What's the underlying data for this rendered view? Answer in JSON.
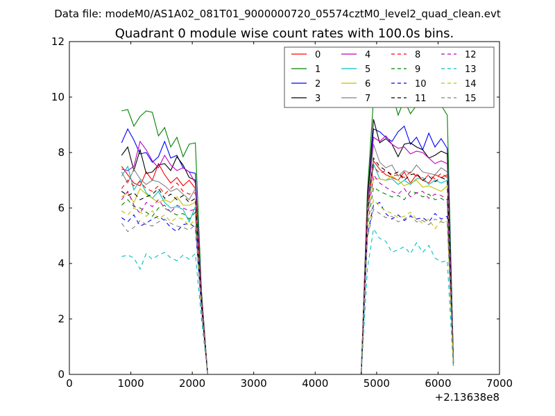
{
  "chart_data": {
    "type": "line",
    "suptitle": "Data file: modeM0/AS1A02_081T01_9000000720_05574cztM0_level2_quad_clean.evt",
    "title": "Quadrant 0 module wise count rates with 100.0s bins.",
    "xlabel": "",
    "ylabel": "",
    "x_offset_label": "+2.13638e8",
    "xlim": [
      0,
      7000
    ],
    "ylim": [
      0,
      12
    ],
    "xticks": [
      0,
      1000,
      2000,
      3000,
      4000,
      5000,
      6000,
      7000
    ],
    "yticks": [
      0,
      2,
      4,
      6,
      8,
      10,
      12
    ],
    "grid": false,
    "legend": {
      "placement": "top-right",
      "columns": 4
    },
    "x": [
      850,
      950,
      1050,
      1150,
      1250,
      1350,
      1450,
      1550,
      1650,
      1750,
      1850,
      1950,
      2050,
      2150,
      2250,
      4750,
      4850,
      4950,
      5050,
      5150,
      5250,
      5350,
      5450,
      5550,
      5650,
      5750,
      5850,
      5950,
      6050,
      6150,
      6250
    ],
    "series": [
      {
        "name": "0",
        "color": "#ff0000",
        "dash": false,
        "values": [
          7.5,
          7.2,
          6.9,
          6.8,
          7.3,
          7.0,
          7.6,
          7.2,
          6.9,
          7.1,
          6.8,
          7.0,
          6.7,
          3.0,
          0,
          0,
          6.0,
          7.7,
          7.4,
          7.2,
          7.1,
          7.0,
          7.3,
          6.9,
          7.2,
          7.0,
          6.9,
          7.2,
          7.1,
          7.2,
          0.4
        ]
      },
      {
        "name": "1",
        "color": "#008000",
        "dash": false,
        "values": [
          9.5,
          9.55,
          8.95,
          9.3,
          9.5,
          9.45,
          8.6,
          8.9,
          8.2,
          8.55,
          7.85,
          8.3,
          8.35,
          3.0,
          0,
          0,
          6.6,
          9.95,
          9.95,
          10.3,
          10.15,
          9.35,
          9.9,
          9.4,
          9.7,
          9.85,
          9.65,
          9.95,
          9.7,
          9.35,
          0.5
        ]
      },
      {
        "name": "2",
        "color": "#0000ff",
        "dash": false,
        "values": [
          8.35,
          8.85,
          8.45,
          7.95,
          8.0,
          7.65,
          7.85,
          8.4,
          7.8,
          7.9,
          7.45,
          7.3,
          7.25,
          2.8,
          0,
          0,
          6.2,
          8.85,
          8.75,
          8.55,
          8.4,
          8.75,
          8.95,
          8.3,
          8.55,
          8.1,
          8.7,
          8.2,
          8.5,
          8.15,
          0.5
        ]
      },
      {
        "name": "3",
        "color": "#000000",
        "dash": false,
        "values": [
          7.9,
          8.2,
          7.35,
          8.1,
          7.25,
          7.3,
          7.55,
          7.6,
          7.35,
          7.85,
          7.55,
          7.1,
          7.0,
          2.8,
          0,
          0,
          6.3,
          9.2,
          8.35,
          8.5,
          8.3,
          7.85,
          8.3,
          8.35,
          8.2,
          8.1,
          7.8,
          7.9,
          8.05,
          7.95,
          0.4
        ]
      },
      {
        "name": "4",
        "color": "#bf00bf",
        "dash": false,
        "values": [
          7.4,
          7.35,
          7.5,
          8.4,
          8.1,
          7.7,
          7.45,
          7.9,
          7.55,
          7.35,
          7.45,
          7.3,
          6.9,
          2.8,
          0,
          0,
          6.1,
          8.55,
          8.4,
          8.6,
          8.3,
          8.15,
          8.2,
          7.95,
          8.05,
          8.0,
          7.8,
          7.6,
          7.7,
          7.6,
          0.4
        ]
      },
      {
        "name": "5",
        "color": "#00bfbf",
        "dash": false,
        "values": [
          7.15,
          7.5,
          6.65,
          7.0,
          6.55,
          6.35,
          6.6,
          6.2,
          6.0,
          6.05,
          5.95,
          5.5,
          6.05,
          2.7,
          0,
          0,
          5.9,
          7.6,
          7.05,
          7.0,
          7.05,
          6.85,
          7.0,
          6.85,
          7.05,
          7.1,
          6.85,
          7.0,
          6.9,
          7.0,
          0.4
        ]
      },
      {
        "name": "6",
        "color": "#bfbf00",
        "dash": false,
        "values": [
          6.4,
          6.55,
          6.2,
          6.7,
          6.5,
          6.35,
          6.2,
          6.3,
          6.2,
          6.4,
          6.1,
          6.1,
          6.2,
          2.6,
          0,
          0,
          5.7,
          7.05,
          7.05,
          7.0,
          7.15,
          7.0,
          6.8,
          6.9,
          7.0,
          6.75,
          6.8,
          6.7,
          6.6,
          6.8,
          0.3
        ]
      },
      {
        "name": "7",
        "color": "#808080",
        "dash": false,
        "values": [
          7.3,
          6.9,
          7.4,
          7.05,
          6.85,
          7.0,
          6.95,
          6.8,
          6.6,
          6.7,
          6.5,
          6.3,
          6.7,
          2.7,
          0,
          0,
          6.0,
          8.3,
          7.65,
          7.45,
          7.55,
          7.15,
          7.35,
          7.25,
          7.55,
          7.3,
          7.25,
          7.2,
          7.45,
          7.3,
          0.4
        ]
      },
      {
        "name": "8",
        "color": "#ff0000",
        "dash": true,
        "values": [
          6.7,
          7.0,
          6.8,
          6.95,
          6.7,
          6.6,
          6.8,
          6.5,
          6.7,
          6.9,
          6.6,
          6.5,
          6.55,
          2.7,
          0,
          0,
          6.0,
          7.5,
          7.25,
          7.35,
          7.15,
          7.2,
          7.1,
          7.3,
          7.15,
          7.0,
          7.2,
          7.05,
          7.25,
          7.1,
          0.4
        ]
      },
      {
        "name": "9",
        "color": "#008000",
        "dash": true,
        "values": [
          6.1,
          6.3,
          6.05,
          6.0,
          5.85,
          5.7,
          6.0,
          6.1,
          5.85,
          5.75,
          5.8,
          5.6,
          5.85,
          2.5,
          0,
          0,
          5.3,
          6.75,
          6.6,
          6.5,
          6.4,
          6.45,
          6.3,
          6.6,
          6.55,
          6.4,
          6.5,
          6.3,
          6.35,
          6.2,
          0.3
        ]
      },
      {
        "name": "10",
        "color": "#0000ff",
        "dash": true,
        "values": [
          5.65,
          5.5,
          5.75,
          5.35,
          5.45,
          5.6,
          5.7,
          5.55,
          5.3,
          5.15,
          5.4,
          5.45,
          5.3,
          2.4,
          0,
          0,
          5.0,
          6.1,
          6.2,
          5.8,
          5.6,
          5.75,
          5.55,
          5.7,
          5.6,
          5.65,
          5.5,
          5.8,
          5.6,
          5.7,
          0.3
        ]
      },
      {
        "name": "11",
        "color": "#000000",
        "dash": true,
        "values": [
          6.6,
          6.45,
          6.55,
          6.3,
          6.4,
          6.5,
          6.7,
          6.35,
          6.5,
          6.3,
          6.45,
          6.2,
          6.35,
          2.6,
          0,
          0,
          5.8,
          7.8,
          7.5,
          7.35,
          7.2,
          7.3,
          7.0,
          7.2,
          7.25,
          7.0,
          7.15,
          6.95,
          7.1,
          7.0,
          0.4
        ]
      },
      {
        "name": "12",
        "color": "#bf00bf",
        "dash": true,
        "values": [
          6.3,
          6.6,
          6.1,
          5.8,
          6.2,
          6.05,
          6.3,
          6.0,
          5.85,
          6.1,
          6.0,
          5.9,
          5.95,
          2.6,
          0,
          0,
          5.6,
          7.2,
          6.9,
          6.75,
          6.6,
          6.5,
          6.7,
          6.4,
          6.55,
          6.6,
          6.35,
          6.5,
          6.45,
          6.3,
          0.3
        ]
      },
      {
        "name": "13",
        "color": "#00bfbf",
        "dash": true,
        "values": [
          4.25,
          4.3,
          4.2,
          3.8,
          4.35,
          4.15,
          4.3,
          4.4,
          4.2,
          4.1,
          4.3,
          4.15,
          4.35,
          2.0,
          0,
          0,
          3.8,
          5.25,
          4.9,
          4.8,
          4.4,
          4.5,
          4.6,
          4.35,
          4.75,
          4.4,
          4.65,
          4.2,
          4.05,
          4.1,
          0.2
        ]
      },
      {
        "name": "14",
        "color": "#bfbf00",
        "dash": true,
        "values": [
          5.9,
          5.75,
          6.0,
          5.85,
          5.7,
          5.9,
          5.6,
          5.75,
          5.5,
          5.65,
          5.6,
          5.35,
          5.6,
          2.4,
          0,
          0,
          5.1,
          6.3,
          6.05,
          5.9,
          5.8,
          5.65,
          5.7,
          5.85,
          5.6,
          5.45,
          5.6,
          5.25,
          5.55,
          5.5,
          0.3
        ]
      },
      {
        "name": "15",
        "color": "#808080",
        "dash": true,
        "values": [
          5.45,
          5.15,
          5.3,
          5.55,
          5.4,
          5.35,
          5.5,
          5.6,
          5.45,
          5.35,
          5.3,
          5.2,
          5.4,
          2.3,
          0,
          0,
          4.9,
          5.95,
          5.8,
          5.65,
          5.7,
          5.5,
          5.6,
          5.75,
          5.5,
          5.55,
          5.4,
          5.6,
          5.5,
          5.45,
          0.3
        ]
      }
    ]
  }
}
